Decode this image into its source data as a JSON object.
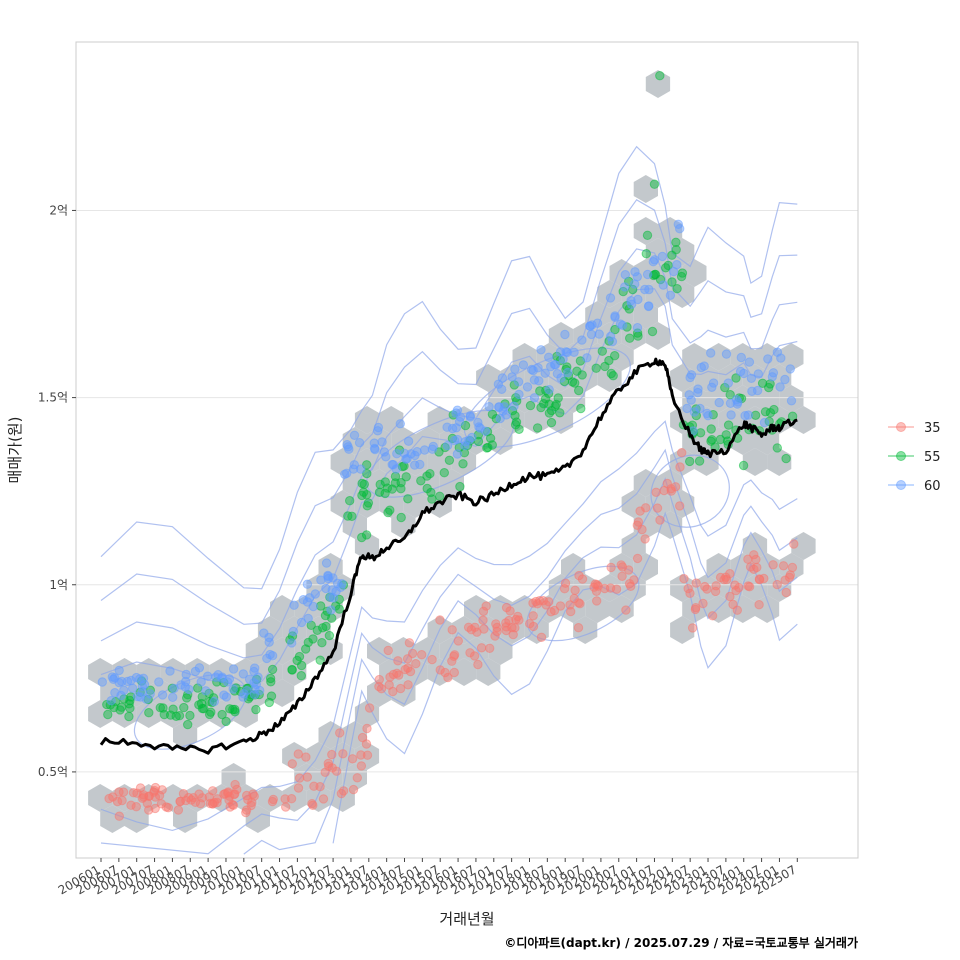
{
  "chart_data": {
    "type": "scatter",
    "xlabel": "거래년월",
    "ylabel": "매매가(원)",
    "credit": "©디아파트(dapt.kr) / 2025.07.29 / 자료=국토교통부 실거래가",
    "x_ticks": [
      "200601",
      "200607",
      "200701",
      "200707",
      "200801",
      "200807",
      "200901",
      "200907",
      "201001",
      "201007",
      "201101",
      "201107",
      "201201",
      "201207",
      "201301",
      "201307",
      "201401",
      "201407",
      "201501",
      "201507",
      "201601",
      "201607",
      "201701",
      "201707",
      "201801",
      "201807",
      "201901",
      "201907",
      "202001",
      "202007",
      "202101",
      "202107",
      "202201",
      "202207",
      "202301",
      "202307",
      "202401",
      "202407",
      "202501",
      "202507"
    ],
    "y_ticks": [
      {
        "value": 0.5,
        "label": "0.5억"
      },
      {
        "value": 1.0,
        "label": "1억"
      },
      {
        "value": 1.5,
        "label": "1.5억"
      },
      {
        "value": 2.0,
        "label": "2억"
      }
    ],
    "xlim": [
      2005.3,
      2027.2
    ],
    "ylim": [
      0.27,
      2.45
    ],
    "grid": true,
    "legend_position": "right",
    "colors": {
      "35": "#f8766d",
      "55": "#00ba38",
      "60": "#619cff",
      "trend": "#000000",
      "hex": "#b9bec3",
      "contour": "#8ea6ea"
    },
    "series": [
      {
        "name": "35",
        "color": "#f8766d",
        "segments": [
          {
            "x0": 2006.0,
            "x1": 2011.3,
            "y0": 0.42,
            "y1": 0.43,
            "spread": 0.035
          },
          {
            "x0": 2011.3,
            "x1": 2013.5,
            "y0": 0.47,
            "y1": 0.55,
            "spread": 0.08
          },
          {
            "x0": 2013.5,
            "x1": 2017.5,
            "y0": 0.72,
            "y1": 0.9,
            "spread": 0.08
          },
          {
            "x0": 2017.5,
            "x1": 2021.0,
            "y0": 0.92,
            "y1": 1.02,
            "spread": 0.07
          },
          {
            "x0": 2021.0,
            "x1": 2022.3,
            "y0": 1.15,
            "y1": 1.28,
            "spread": 0.08
          },
          {
            "x0": 2022.3,
            "x1": 2025.5,
            "y0": 0.95,
            "y1": 1.05,
            "spread": 0.08
          }
        ]
      },
      {
        "name": "55",
        "color": "#00ba38",
        "segments": [
          {
            "x0": 2006.0,
            "x1": 2010.5,
            "y0": 0.68,
            "y1": 0.7,
            "spread": 0.05
          },
          {
            "x0": 2010.5,
            "x1": 2012.8,
            "y0": 0.7,
            "y1": 0.95,
            "spread": 0.07
          },
          {
            "x0": 2012.8,
            "x1": 2016.5,
            "y0": 1.2,
            "y1": 1.38,
            "spread": 0.09
          },
          {
            "x0": 2016.5,
            "x1": 2020.5,
            "y0": 1.38,
            "y1": 1.62,
            "spread": 0.08
          },
          {
            "x0": 2020.5,
            "x1": 2022.3,
            "y0": 1.7,
            "y1": 1.9,
            "spread": 0.14
          },
          {
            "x0": 2022.3,
            "x1": 2025.5,
            "y0": 1.4,
            "y1": 1.45,
            "spread": 0.1
          }
        ]
      },
      {
        "name": "60",
        "color": "#619cff",
        "segments": [
          {
            "x0": 2006.0,
            "x1": 2010.5,
            "y0": 0.72,
            "y1": 0.74,
            "spread": 0.05
          },
          {
            "x0": 2010.5,
            "x1": 2012.8,
            "y0": 0.82,
            "y1": 1.02,
            "spread": 0.07
          },
          {
            "x0": 2012.8,
            "x1": 2016.5,
            "y0": 1.3,
            "y1": 1.42,
            "spread": 0.08
          },
          {
            "x0": 2016.5,
            "x1": 2020.5,
            "y0": 1.45,
            "y1": 1.7,
            "spread": 0.08
          },
          {
            "x0": 2020.5,
            "x1": 2022.3,
            "y0": 1.75,
            "y1": 1.9,
            "spread": 0.12
          },
          {
            "x0": 2022.3,
            "x1": 2025.5,
            "y0": 1.5,
            "y1": 1.55,
            "spread": 0.1
          }
        ]
      }
    ],
    "trend": {
      "name": "moving-average",
      "x": [
        2006.0,
        2007.0,
        2008.0,
        2009.0,
        2010.0,
        2010.5,
        2011.0,
        2011.5,
        2012.0,
        2012.5,
        2013.0,
        2013.3,
        2013.6,
        2014.0,
        2014.5,
        2015.0,
        2015.5,
        2016.0,
        2016.5,
        2017.0,
        2017.5,
        2018.0,
        2018.5,
        2019.0,
        2019.5,
        2020.0,
        2020.5,
        2021.0,
        2021.5,
        2021.8,
        2022.0,
        2022.5,
        2022.8,
        2023.0,
        2023.5,
        2024.0,
        2024.2,
        2024.5,
        2024.8,
        2025.0,
        2025.5
      ],
      "y": [
        0.58,
        0.58,
        0.56,
        0.56,
        0.58,
        0.6,
        0.63,
        0.68,
        0.75,
        0.82,
        0.98,
        1.08,
        1.07,
        1.1,
        1.12,
        1.19,
        1.22,
        1.24,
        1.22,
        1.24,
        1.27,
        1.29,
        1.29,
        1.31,
        1.36,
        1.45,
        1.52,
        1.57,
        1.6,
        1.59,
        1.5,
        1.4,
        1.36,
        1.35,
        1.36,
        1.43,
        1.42,
        1.4,
        1.42,
        1.42,
        1.44
      ]
    }
  }
}
